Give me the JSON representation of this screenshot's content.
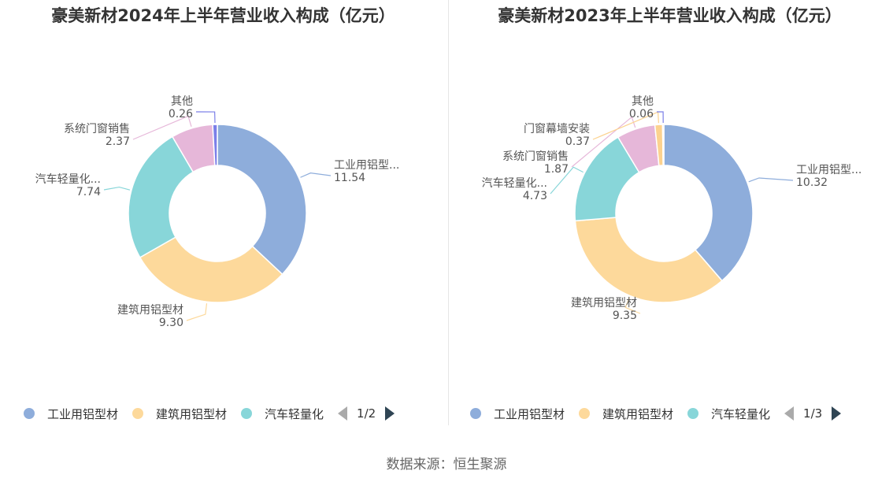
{
  "source": "数据来源：恒生聚源",
  "chart_data": [
    {
      "type": "pie",
      "title": "豪美新材2024年上半年营业收入构成（亿元）",
      "series": [
        {
          "name": "工业用铝型材",
          "label": "工业用铝型...",
          "value": 11.54,
          "color": "#8eaddb"
        },
        {
          "name": "建筑用铝型材",
          "label": "建筑用铝型材",
          "value": 9.3,
          "color": "#fdd99b"
        },
        {
          "name": "汽车轻量化",
          "label": "汽车轻量化...",
          "value": 7.74,
          "color": "#88d6d9"
        },
        {
          "name": "系统门窗销售",
          "label": "系统门窗销售",
          "value": 2.37,
          "color": "#e6b7d9"
        },
        {
          "name": "其他",
          "label": "其他",
          "value": 0.26,
          "color": "#7b7fe8"
        }
      ],
      "legend": {
        "items": [
          "工业用铝型材",
          "建筑用铝型材",
          "汽车轻量化"
        ],
        "page": "1/2",
        "position": "bottom"
      }
    },
    {
      "type": "pie",
      "title": "豪美新材2023年上半年营业收入构成（亿元）",
      "series": [
        {
          "name": "工业用铝型材",
          "label": "工业用铝型...",
          "value": 10.32,
          "color": "#8eaddb"
        },
        {
          "name": "建筑用铝型材",
          "label": "建筑用铝型材",
          "value": 9.35,
          "color": "#fdd99b"
        },
        {
          "name": "汽车轻量化",
          "label": "汽车轻量化...",
          "value": 4.73,
          "color": "#88d6d9"
        },
        {
          "name": "系统门窗销售",
          "label": "系统门窗销售",
          "value": 1.87,
          "color": "#e6b7d9"
        },
        {
          "name": "门窗幕墙安装",
          "label": "门窗幕墙安装",
          "value": 0.37,
          "color": "#fcd28f"
        },
        {
          "name": "其他",
          "label": "其他",
          "value": 0.06,
          "color": "#7b7fe8"
        }
      ],
      "legend": {
        "items": [
          "工业用铝型材",
          "建筑用铝型材",
          "汽车轻量化"
        ],
        "page": "1/3",
        "position": "bottom"
      }
    }
  ]
}
